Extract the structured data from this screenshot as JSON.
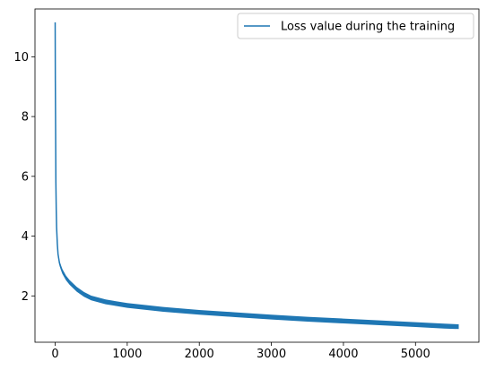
{
  "chart_data": {
    "type": "line",
    "title": "",
    "xlabel": "",
    "ylabel": "",
    "xlim": [
      -280,
      5880
    ],
    "ylim": [
      0.45,
      11.6
    ],
    "xticks": [
      0,
      1000,
      2000,
      3000,
      4000,
      5000
    ],
    "xtick_labels": [
      "0",
      "1000",
      "2000",
      "3000",
      "4000",
      "5000"
    ],
    "yticks": [
      2,
      4,
      6,
      8,
      10
    ],
    "ytick_labels": [
      "2",
      "4",
      "6",
      "8",
      "10"
    ],
    "grid": false,
    "legend": {
      "position": "top-right",
      "entries": [
        "Loss value during the training"
      ]
    },
    "series": [
      {
        "name": "Loss value during the training",
        "color": "#1f77b4",
        "x": [
          0,
          3,
          6,
          10,
          15,
          20,
          30,
          40,
          60,
          80,
          100,
          150,
          200,
          300,
          400,
          500,
          700,
          1000,
          1500,
          2000,
          2500,
          3000,
          3500,
          4000,
          4500,
          5000,
          5400,
          5600
        ],
        "y": [
          11.15,
          9.2,
          7.6,
          5.8,
          4.9,
          4.3,
          3.75,
          3.4,
          3.1,
          2.95,
          2.82,
          2.6,
          2.45,
          2.22,
          2.05,
          1.93,
          1.8,
          1.68,
          1.55,
          1.45,
          1.37,
          1.29,
          1.22,
          1.16,
          1.1,
          1.04,
          0.99,
          0.97
        ],
        "band_halfwidth": 0.08
      }
    ]
  }
}
